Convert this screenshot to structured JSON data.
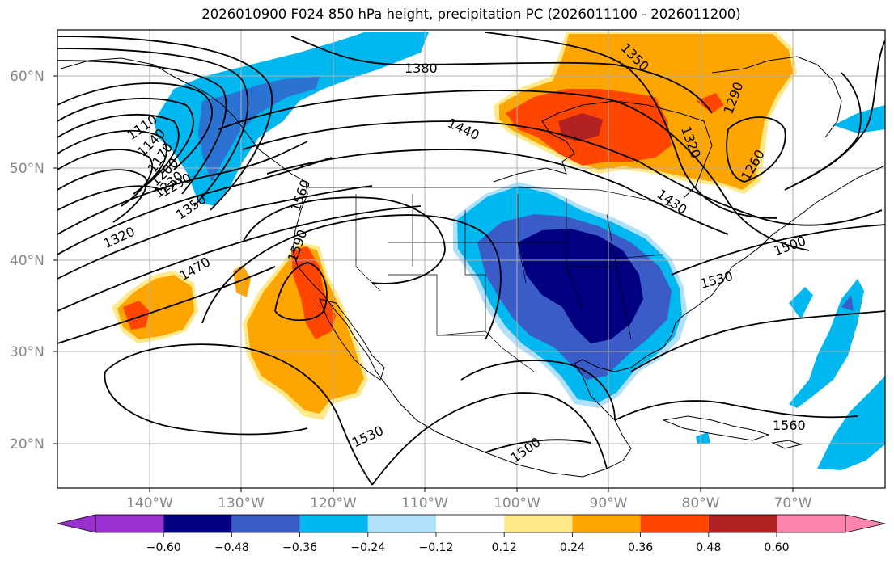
{
  "title": "2026010900 F024 850 hPa height, precipitation PC (2026011100 - 2026011200)",
  "lat_labels": [
    "60°N",
    "50°N",
    "40°N",
    "30°N",
    "20°N"
  ],
  "lon_labels": [
    "140°W",
    "130°W",
    "120°W",
    "110°W",
    "100°W",
    "90°W",
    "80°W",
    "70°W"
  ],
  "colorbar": {
    "labels": [
      "−0.60",
      "−0.48",
      "−0.36",
      "−0.24",
      "−0.12",
      "0.12",
      "0.24",
      "0.36",
      "0.48",
      "0.60"
    ],
    "colors": [
      "#9b30d0",
      "#000080",
      "#3a5bc8",
      "#00b7f0",
      "#b0e0fa",
      "#ffffff",
      "#ffe98a",
      "#ffa500",
      "#ff4500",
      "#b22222",
      "#ff85b0"
    ]
  },
  "shading_colors": {
    "dark_blue": "#000080",
    "mid_blue": "#3a5bc8",
    "cyan": "#00b7f0",
    "light_blue": "#b0e0fa",
    "light_yellow": "#ffe98a",
    "orange": "#ffa500",
    "red_orange": "#ff4500",
    "dark_red": "#b22222"
  },
  "contour_labels": [
    "1380",
    "1350",
    "1290",
    "1320",
    "1260",
    "1440",
    "1110",
    "1140",
    "1170",
    "1200",
    "1230",
    "1290",
    "1350",
    "1320",
    "1470",
    "1560",
    "1590",
    "1530",
    "1500",
    "1530",
    "1500",
    "1560",
    "1430"
  ]
}
